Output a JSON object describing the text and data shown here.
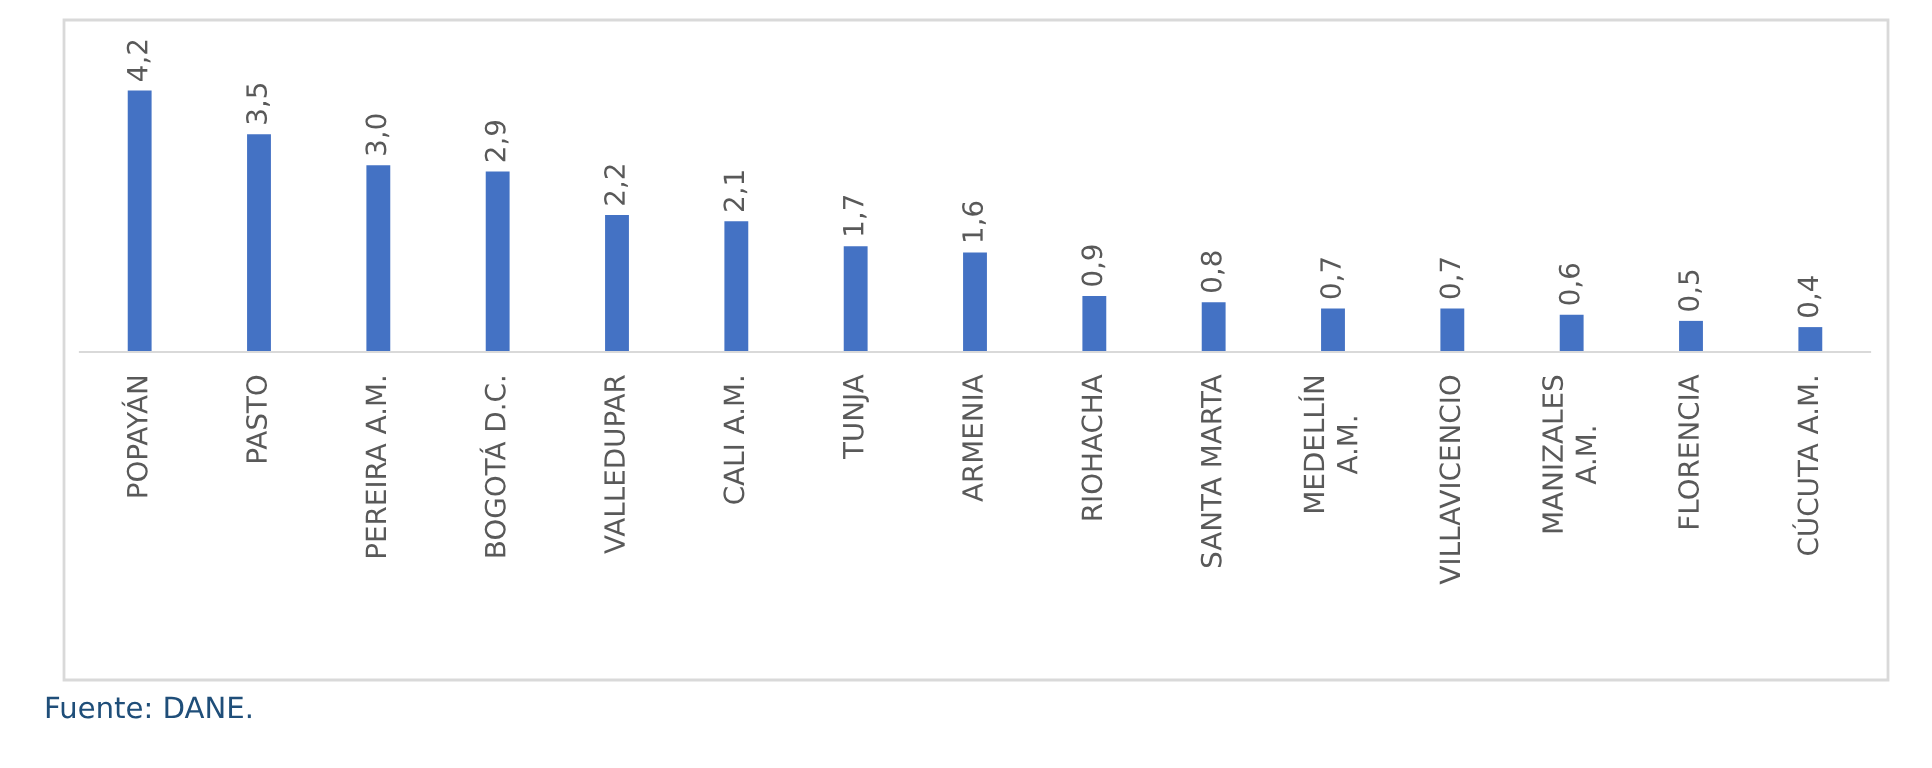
{
  "chart_data": {
    "type": "bar",
    "categories": [
      "POPAYÁN",
      "PASTO",
      "PEREIRA A.M.",
      "BOGOTÁ D.C.",
      "VALLEDUPAR",
      "CALI A.M.",
      "TUNJA",
      "ARMENIA",
      "RIOHACHA",
      "SANTA MARTA",
      "MEDELLÍN\nA.M.",
      "VILLAVICENCIO",
      "MANIZALES\nA.M.",
      "FLORENCIA",
      "CÚCUTA A.M."
    ],
    "values": [
      4.2,
      3.5,
      3.0,
      2.9,
      2.2,
      2.1,
      1.7,
      1.6,
      0.9,
      0.8,
      0.7,
      0.7,
      0.6,
      0.5,
      0.4
    ],
    "value_labels": [
      "4,2",
      "3,5",
      "3,0",
      "2,9",
      "2,2",
      "2,1",
      "1,7",
      "1,6",
      "0,9",
      "0,8",
      "0,7",
      "0,7",
      "0,6",
      "0,5",
      "0,4"
    ],
    "color": "#4472c4",
    "grid": false,
    "legend": false,
    "annotations": [
      "Fuente: DANE."
    ]
  }
}
